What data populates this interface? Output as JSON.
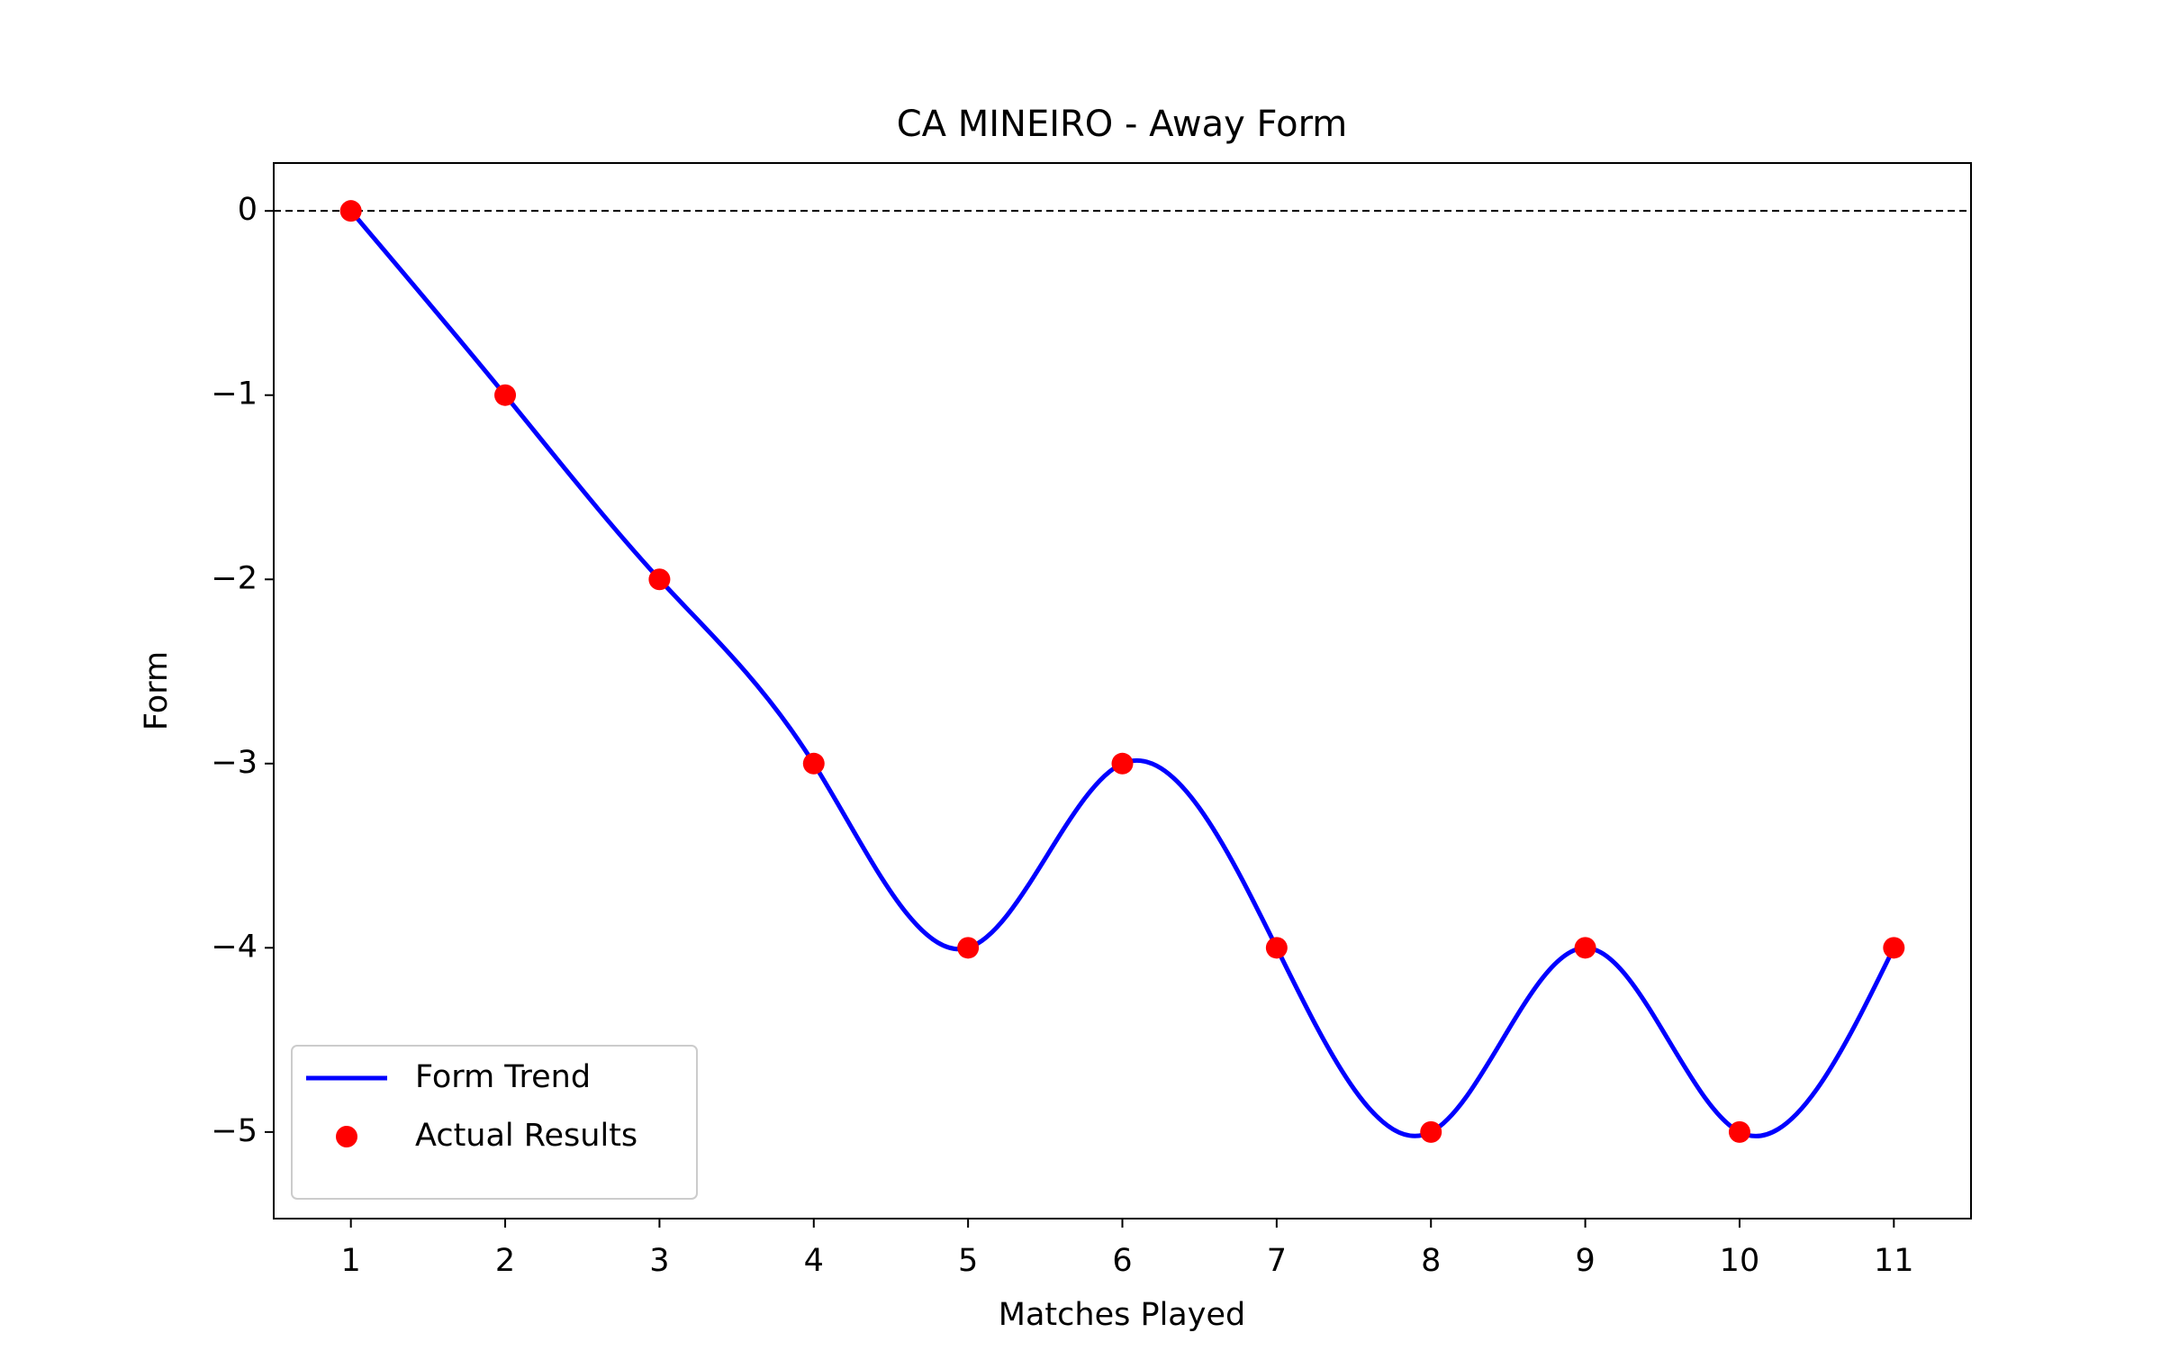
{
  "chart_data": {
    "type": "line",
    "title": "CA MINEIRO - Away Form",
    "x_label": "Matches Played",
    "y_label": "Form",
    "x": [
      1,
      2,
      3,
      4,
      5,
      6,
      7,
      8,
      9,
      10,
      11
    ],
    "series": [
      {
        "name": "Form Trend",
        "type": "line",
        "smooth": true,
        "color": "#0000ff",
        "values": [
          0,
          -1,
          -2,
          -3,
          -4,
          -3,
          -4,
          -5,
          -4,
          -5,
          -4
        ]
      },
      {
        "name": "Actual Results",
        "type": "scatter",
        "color": "#ff0000",
        "values": [
          0,
          -1,
          -2,
          -3,
          -4,
          -3,
          -4,
          -5,
          -4,
          -5,
          -4
        ]
      }
    ],
    "xlim": [
      0.5,
      11.5
    ],
    "ylim": [
      -5.47,
      0.26
    ],
    "xticks": [
      1,
      2,
      3,
      4,
      5,
      6,
      7,
      8,
      9,
      10,
      11
    ],
    "yticks": [
      {
        "value": -5,
        "label": "−5"
      },
      {
        "value": -4,
        "label": "−4"
      },
      {
        "value": -3,
        "label": "−3"
      },
      {
        "value": -2,
        "label": "−2"
      },
      {
        "value": -1,
        "label": "−1"
      },
      0
    ],
    "hlines": [
      0
    ],
    "grid": false,
    "legend": "lower left"
  }
}
